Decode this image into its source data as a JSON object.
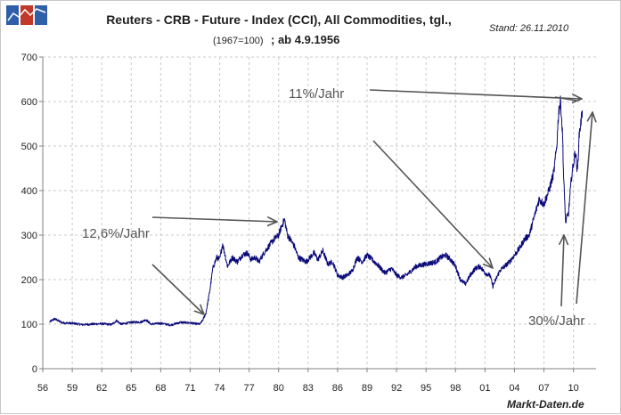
{
  "colors": {
    "series": "#0a0a7a",
    "arrow": "#555555",
    "grid": "#c8c8c8",
    "logo": [
      "#2f5fa8",
      "#c0392b",
      "#2f5fa8",
      "#3a7bc8"
    ]
  },
  "logo": {
    "icon": "chart-logo-icon"
  },
  "header": {
    "title": "Reuters - CRB - Future - Index (CCI), All Commodities, tgl.,",
    "subtitle_small": "(1967=100)",
    "subtitle_bold": "; ab 4.9.1956",
    "stand": "Stand: 26.11.2010"
  },
  "footer": {
    "source": "Markt-Daten.de"
  },
  "annotations": [
    {
      "id": "ann-12-6",
      "text": "12,6%/Jahr"
    },
    {
      "id": "ann-11",
      "text": "11%/Jahr"
    },
    {
      "id": "ann-30",
      "text": "30%/Jahr"
    }
  ],
  "chart_data": {
    "type": "line",
    "title": "Reuters - CRB - Future - Index (CCI), All Commodities, tgl., (1967=100); ab 4.9.1956",
    "xlabel": "",
    "ylabel": "",
    "xlim": [
      1956,
      2012.3
    ],
    "ylim": [
      0,
      700
    ],
    "y_ticks": [
      0,
      100,
      200,
      300,
      400,
      500,
      600,
      700
    ],
    "x_ticks": [
      {
        "value": 1956,
        "label": "56"
      },
      {
        "value": 1959,
        "label": "59"
      },
      {
        "value": 1962,
        "label": "62"
      },
      {
        "value": 1965,
        "label": "65"
      },
      {
        "value": 1968,
        "label": "68"
      },
      {
        "value": 1971,
        "label": "71"
      },
      {
        "value": 1974,
        "label": "74"
      },
      {
        "value": 1977,
        "label": "77"
      },
      {
        "value": 1980,
        "label": "80"
      },
      {
        "value": 1983,
        "label": "83"
      },
      {
        "value": 1986,
        "label": "86"
      },
      {
        "value": 1989,
        "label": "89"
      },
      {
        "value": 1992,
        "label": "92"
      },
      {
        "value": 1995,
        "label": "95"
      },
      {
        "value": 1998,
        "label": "98"
      },
      {
        "value": 2001,
        "label": "01"
      },
      {
        "value": 2004,
        "label": "04"
      },
      {
        "value": 2007,
        "label": "07"
      },
      {
        "value": 2010,
        "label": "10"
      }
    ],
    "grid": true,
    "legend": "none",
    "series": [
      {
        "x": [
          1956.7,
          1957.2,
          1958.0,
          1959.0,
          1960.0,
          1961.0,
          1962.0,
          1963.0,
          1963.5,
          1964.0,
          1965.0,
          1966.0,
          1966.5,
          1967.0,
          1968.0,
          1969.0,
          1970.0,
          1971.0,
          1971.5,
          1972.0,
          1972.3,
          1972.6,
          1973.0,
          1973.3,
          1973.7,
          1974.0,
          1974.3,
          1974.8,
          1975.3,
          1975.8,
          1976.3,
          1976.8,
          1977.2,
          1977.6,
          1978.0,
          1978.5,
          1979.0,
          1979.5,
          1980.0,
          1980.3,
          1980.6,
          1980.9,
          1981.2,
          1981.6,
          1982.0,
          1982.4,
          1982.8,
          1983.2,
          1983.6,
          1984.0,
          1984.5,
          1985.0,
          1985.5,
          1986.0,
          1986.5,
          1987.0,
          1987.5,
          1988.0,
          1988.5,
          1989.0,
          1990.0,
          1990.8,
          1991.5,
          1992.0,
          1992.5,
          1993.0,
          1994.0,
          1995.0,
          1996.0,
          1996.5,
          1997.0,
          1997.5,
          1998.0,
          1998.5,
          1999.0,
          1999.5,
          2000.0,
          2000.5,
          2001.0,
          2001.5,
          2001.8,
          2002.0,
          2002.5,
          2003.0,
          2003.5,
          2004.0,
          2004.5,
          2005.0,
          2005.5,
          2006.0,
          2006.5,
          2007.0,
          2007.5,
          2008.0,
          2008.3,
          2008.5,
          2008.7,
          2008.9,
          2009.0,
          2009.2,
          2009.5,
          2009.8,
          2010.0,
          2010.2,
          2010.4,
          2010.6,
          2010.8,
          2010.9
        ],
        "y": [
          105,
          112,
          103,
          102,
          99,
          100,
          101,
          99,
          108,
          100,
          104,
          105,
          110,
          100,
          102,
          98,
          104,
          103,
          101,
          100,
          110,
          125,
          175,
          225,
          250,
          245,
          280,
          230,
          250,
          240,
          255,
          260,
          245,
          250,
          240,
          260,
          275,
          290,
          300,
          320,
          335,
          300,
          290,
          275,
          250,
          245,
          240,
          250,
          260,
          245,
          265,
          235,
          240,
          210,
          205,
          210,
          220,
          250,
          240,
          255,
          235,
          215,
          225,
          210,
          205,
          210,
          230,
          235,
          240,
          250,
          255,
          245,
          230,
          200,
          190,
          210,
          225,
          230,
          215,
          210,
          185,
          195,
          220,
          230,
          240,
          255,
          270,
          290,
          300,
          340,
          380,
          370,
          400,
          440,
          500,
          580,
          600,
          520,
          430,
          330,
          350,
          430,
          460,
          490,
          440,
          530,
          560,
          580
        ],
        "color": "#0a0a7a"
      }
    ]
  }
}
